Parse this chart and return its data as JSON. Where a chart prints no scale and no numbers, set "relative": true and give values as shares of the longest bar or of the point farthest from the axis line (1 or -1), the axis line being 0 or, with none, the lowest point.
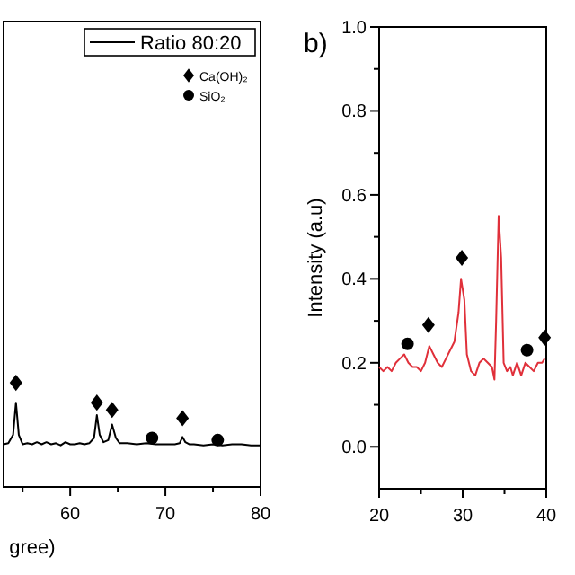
{
  "chart_data": [
    {
      "type": "line",
      "relative": true,
      "xlabel": "gree)",
      "x": [
        53,
        53.5,
        54,
        54.3,
        54.6,
        55,
        55.5,
        56,
        56.5,
        57,
        57.5,
        58,
        58.5,
        59,
        59.5,
        60,
        60.5,
        61,
        61.5,
        62,
        62.5,
        62.8,
        63.1,
        63.5,
        64,
        64.4,
        64.8,
        65.2,
        66,
        67,
        68,
        69,
        70,
        71,
        71.5,
        71.8,
        72.1,
        72.5,
        73,
        74,
        75,
        76,
        77,
        78,
        79,
        80
      ],
      "xlim": [
        53,
        80
      ],
      "xticks": [
        {
          "value": 55,
          "label": null
        },
        60,
        {
          "value": 65,
          "label": null
        },
        70,
        {
          "value": 75,
          "label": null
        },
        80
      ],
      "legend": "top right",
      "grid": false,
      "series": [
        {
          "name": "Ratio 80:20",
          "color": "#000000",
          "values": [
            0.41,
            0.42,
            0.5,
            0.81,
            0.5,
            0.41,
            0.42,
            0.41,
            0.43,
            0.41,
            0.43,
            0.41,
            0.42,
            0.4,
            0.43,
            0.41,
            0.41,
            0.42,
            0.41,
            0.42,
            0.47,
            0.69,
            0.5,
            0.43,
            0.45,
            0.6,
            0.47,
            0.42,
            0.42,
            0.41,
            0.42,
            0.41,
            0.41,
            0.41,
            0.42,
            0.48,
            0.43,
            0.41,
            0.41,
            0.4,
            0.41,
            0.4,
            0.41,
            0.41,
            0.4,
            0.4
          ]
        },
        {
          "name": "Ca(OH)₂",
          "type": "scatter",
          "marker": "diamond",
          "color": "#000000",
          "x": [
            54.3,
            62.8,
            64.4,
            71.8
          ],
          "values": [
            1.0,
            0.81,
            0.74,
            0.66
          ]
        },
        {
          "name": "SiO₂",
          "type": "scatter",
          "marker": "circle",
          "color": "#000000",
          "x": [
            68.6,
            75.5
          ],
          "values": [
            0.47,
            0.45
          ]
        }
      ]
    },
    {
      "type": "line",
      "title": "b)",
      "ylabel": "Intensity (a.u)",
      "xlim": [
        20,
        40
      ],
      "ylim": [
        -0.1,
        1.0
      ],
      "grid": false,
      "legend": false,
      "xticks": [
        20,
        {
          "value": 25,
          "label": null
        },
        30,
        {
          "value": 35,
          "label": null
        },
        40
      ],
      "yticks": [
        {
          "value": 0,
          "label": "0.0"
        },
        {
          "value": 0.1,
          "label": null
        },
        0.2,
        {
          "value": 0.3,
          "label": null
        },
        0.4,
        {
          "value": 0.5,
          "label": null
        },
        0.6,
        {
          "value": 0.7,
          "label": null
        },
        0.8,
        {
          "value": 0.9,
          "label": null
        },
        {
          "value": 1,
          "label": "1.0"
        }
      ],
      "x": [
        20,
        20.5,
        21,
        21.5,
        22,
        22.5,
        23,
        23.5,
        24,
        24.5,
        25,
        25.5,
        26,
        26.5,
        27,
        27.5,
        28,
        28.5,
        29,
        29.5,
        29.8,
        30.2,
        30.5,
        31,
        31.5,
        32,
        32.5,
        33,
        33.5,
        33.8,
        34,
        34.3,
        34.6,
        34.9,
        35.3,
        35.7,
        36,
        36.5,
        37,
        37.5,
        38,
        38.5,
        39,
        39.5,
        39.8
      ],
      "series": [
        {
          "color": "#e0303a",
          "values": [
            0.19,
            0.18,
            0.19,
            0.18,
            0.2,
            0.21,
            0.22,
            0.2,
            0.19,
            0.19,
            0.18,
            0.2,
            0.24,
            0.22,
            0.2,
            0.19,
            0.21,
            0.23,
            0.25,
            0.32,
            0.4,
            0.35,
            0.22,
            0.18,
            0.17,
            0.2,
            0.21,
            0.2,
            0.19,
            0.16,
            0.3,
            0.55,
            0.45,
            0.2,
            0.18,
            0.19,
            0.17,
            0.2,
            0.17,
            0.2,
            0.19,
            0.18,
            0.2,
            0.2,
            0.21
          ]
        },
        {
          "type": "scatter",
          "marker": "diamond",
          "color": "#000000",
          "x": [
            25.9,
            29.9,
            39.8
          ],
          "values": [
            0.29,
            0.45,
            0.26
          ]
        },
        {
          "type": "scatter",
          "marker": "circle",
          "color": "#000000",
          "x": [
            23.4,
            37.7
          ],
          "values": [
            0.245,
            0.23
          ]
        }
      ]
    }
  ]
}
